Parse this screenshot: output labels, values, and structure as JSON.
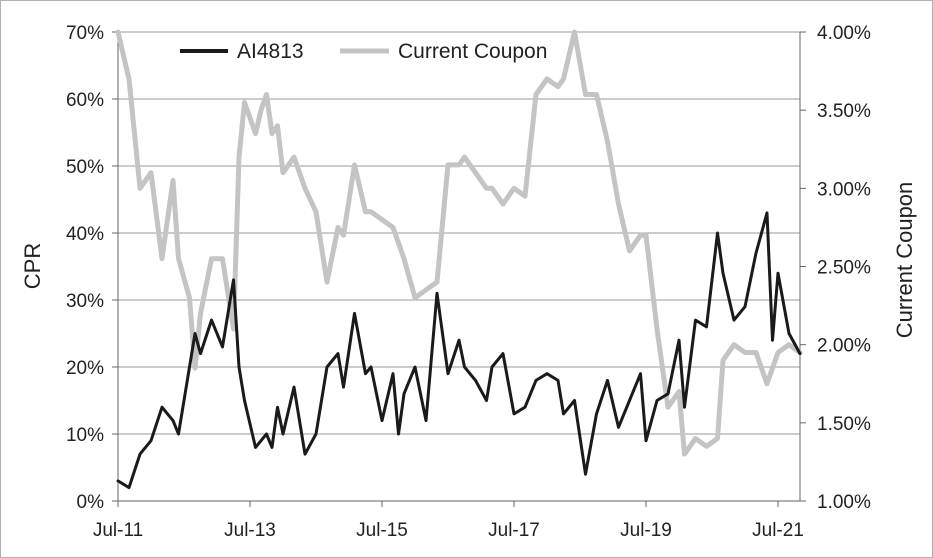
{
  "chart_data": {
    "type": "line",
    "title": "",
    "ylabel": "CPR",
    "ylabel_right": "Current Coupon",
    "x_ticks": [
      "Jul-11",
      "Jul-13",
      "Jul-15",
      "Jul-17",
      "Jul-19",
      "Jul-21"
    ],
    "y_ticks_left": [
      "0%",
      "10%",
      "20%",
      "30%",
      "40%",
      "50%",
      "60%",
      "70%"
    ],
    "y_ticks_right": [
      "1.00%",
      "1.50%",
      "2.00%",
      "2.50%",
      "3.00%",
      "3.50%",
      "4.00%"
    ],
    "x_range": [
      "2011-07",
      "2021-11"
    ],
    "ylim_left": [
      0,
      70
    ],
    "ylim_right": [
      1.0,
      4.0
    ],
    "grid": "horizontal",
    "legend_position": "top",
    "colors": {
      "AI4813": "#1a1a1a",
      "Current Coupon": "#c4c4c4"
    },
    "series": [
      {
        "name": "AI4813",
        "axis": "left",
        "x": [
          "2011-07",
          "2011-09",
          "2011-11",
          "2012-01",
          "2012-03",
          "2012-05",
          "2012-06",
          "2012-08",
          "2012-09",
          "2012-10",
          "2012-12",
          "2013-02",
          "2013-04",
          "2013-05",
          "2013-06",
          "2013-08",
          "2013-09",
          "2013-10",
          "2013-11",
          "2013-12",
          "2014-01",
          "2014-03",
          "2014-05",
          "2014-07",
          "2014-09",
          "2014-11",
          "2014-12",
          "2015-02",
          "2015-04",
          "2015-05",
          "2015-07",
          "2015-09",
          "2015-10",
          "2015-11",
          "2016-01",
          "2016-03",
          "2016-05",
          "2016-07",
          "2016-09",
          "2016-10",
          "2016-12",
          "2017-02",
          "2017-03",
          "2017-05",
          "2017-07",
          "2017-09",
          "2017-11",
          "2018-01",
          "2018-03",
          "2018-04",
          "2018-06",
          "2018-08",
          "2018-10",
          "2018-12",
          "2019-02",
          "2019-04",
          "2019-06",
          "2019-07",
          "2019-09",
          "2019-11",
          "2020-01",
          "2020-02",
          "2020-04",
          "2020-06",
          "2020-08",
          "2020-09",
          "2020-11",
          "2021-01",
          "2021-03",
          "2021-05",
          "2021-06",
          "2021-07",
          "2021-09",
          "2021-11"
        ],
        "values": [
          3,
          2,
          7,
          9,
          14,
          12,
          10,
          20,
          25,
          22,
          27,
          23,
          33,
          20,
          15,
          8,
          9,
          10,
          8,
          14,
          10,
          17,
          7,
          10,
          20,
          22,
          17,
          28,
          19,
          20,
          12,
          19,
          10,
          16,
          20,
          12,
          31,
          19,
          24,
          20,
          18,
          15,
          20,
          22,
          13,
          14,
          18,
          19,
          18,
          13,
          15,
          4,
          13,
          18,
          11,
          15,
          19,
          9,
          15,
          16,
          24,
          14,
          27,
          26,
          40,
          34,
          27,
          29,
          37,
          43,
          24,
          34,
          25,
          22
        ],
        "note": "end value read from plot"
      },
      {
        "name": "Current Coupon",
        "axis": "right",
        "x": [
          "2011-07",
          "2011-09",
          "2011-11",
          "2012-01",
          "2012-03",
          "2012-05",
          "2012-06",
          "2012-08",
          "2012-09",
          "2012-10",
          "2012-12",
          "2013-02",
          "2013-04",
          "2013-05",
          "2013-06",
          "2013-08",
          "2013-09",
          "2013-10",
          "2013-11",
          "2013-12",
          "2014-01",
          "2014-03",
          "2014-05",
          "2014-07",
          "2014-09",
          "2014-11",
          "2014-12",
          "2015-02",
          "2015-04",
          "2015-05",
          "2015-07",
          "2015-09",
          "2015-10",
          "2015-11",
          "2016-01",
          "2016-03",
          "2016-05",
          "2016-07",
          "2016-09",
          "2016-10",
          "2016-12",
          "2017-02",
          "2017-03",
          "2017-05",
          "2017-07",
          "2017-09",
          "2017-11",
          "2018-01",
          "2018-03",
          "2018-04",
          "2018-06",
          "2018-08",
          "2018-10",
          "2018-12",
          "2019-02",
          "2019-04",
          "2019-06",
          "2019-07",
          "2019-09",
          "2019-11",
          "2020-01",
          "2020-02",
          "2020-04",
          "2020-06",
          "2020-08",
          "2020-09",
          "2020-11",
          "2021-01",
          "2021-03",
          "2021-05",
          "2021-06",
          "2021-07",
          "2021-09",
          "2021-11"
        ],
        "values": [
          4.0,
          3.7,
          3.0,
          3.1,
          2.55,
          3.05,
          2.55,
          2.3,
          1.85,
          2.2,
          2.55,
          2.55,
          2.1,
          3.2,
          3.55,
          3.35,
          3.5,
          3.6,
          3.35,
          3.4,
          3.1,
          3.2,
          3.0,
          2.85,
          2.4,
          2.75,
          2.7,
          3.15,
          2.85,
          2.85,
          2.8,
          2.75,
          2.65,
          2.55,
          2.3,
          2.35,
          2.4,
          3.15,
          3.15,
          3.2,
          3.1,
          3.0,
          3.0,
          2.9,
          3.0,
          2.95,
          3.6,
          3.7,
          3.65,
          3.7,
          4.0,
          3.6,
          3.6,
          3.3,
          2.9,
          2.6,
          2.7,
          2.7,
          2.1,
          1.6,
          1.7,
          1.3,
          1.4,
          1.35,
          1.4,
          1.9,
          2.0,
          1.95,
          1.95,
          1.75,
          1.85,
          1.95,
          2.0,
          1.95
        ]
      }
    ]
  },
  "legend": [
    {
      "label": "AI4813"
    },
    {
      "label": "Current Coupon"
    }
  ]
}
